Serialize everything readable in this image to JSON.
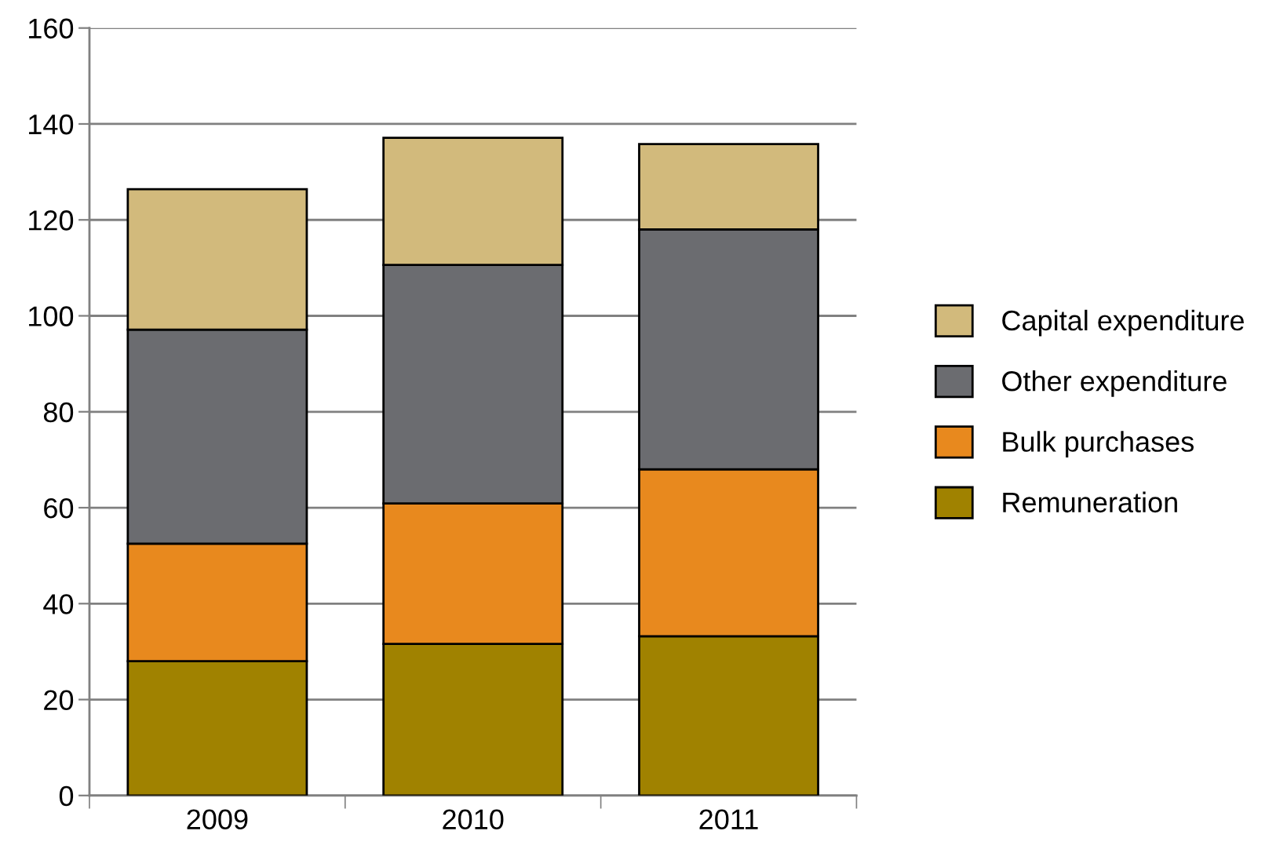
{
  "chart_data": {
    "type": "bar",
    "stacked": true,
    "categories": [
      "2009",
      "2010",
      "2011"
    ],
    "series": [
      {
        "name": "Remuneration",
        "color": "#a08200",
        "values": [
          28.0,
          31.6,
          33.2
        ]
      },
      {
        "name": "Bulk purchases",
        "color": "#e8891e",
        "values": [
          24.5,
          29.3,
          34.8
        ]
      },
      {
        "name": "Other expenditure",
        "color": "#6b6c70",
        "values": [
          44.6,
          49.7,
          50.0
        ]
      },
      {
        "name": "Capital expenditure",
        "color": "#d2ba7c",
        "values": [
          29.3,
          26.5,
          17.8
        ]
      }
    ],
    "ylim": [
      0,
      160
    ],
    "yticks": [
      0,
      20,
      40,
      60,
      80,
      100,
      120,
      140,
      160
    ],
    "grid": "y",
    "legend": "right"
  }
}
